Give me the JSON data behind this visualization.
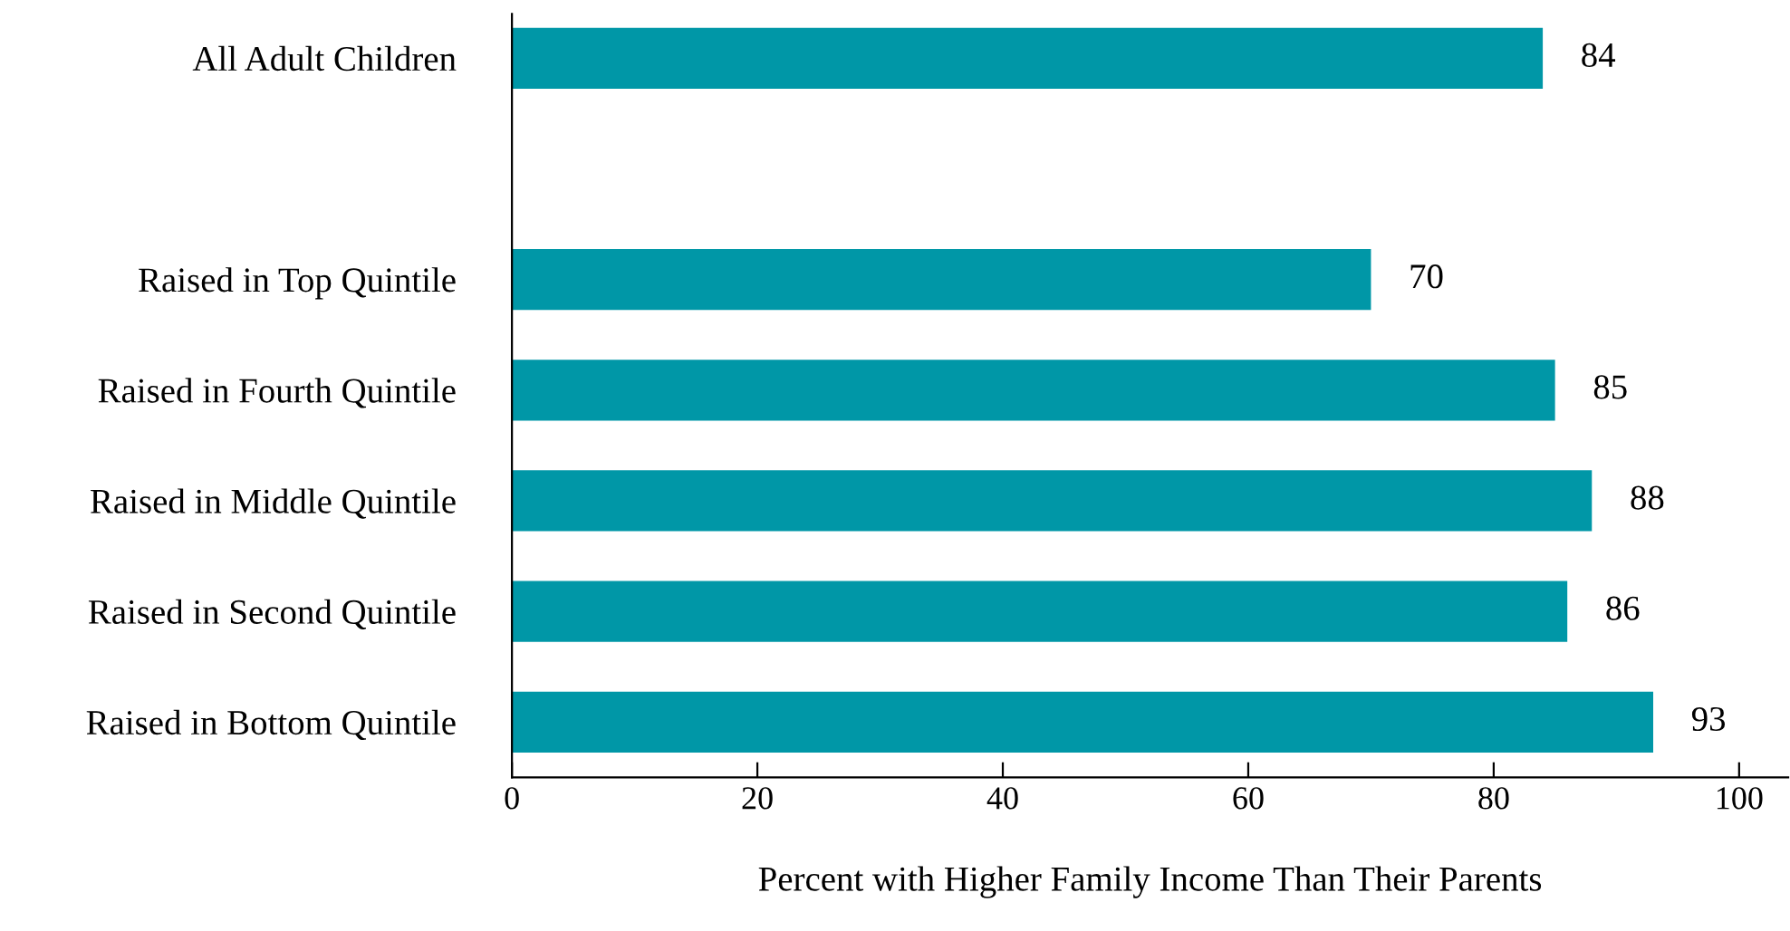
{
  "chart_data": {
    "type": "bar",
    "orientation": "horizontal",
    "categories": [
      "All Adult Children",
      null,
      "Raised in Top Quintile",
      "Raised in Fourth Quintile",
      "Raised in Middle Quintile",
      "Raised in Second Quintile",
      "Raised in Bottom Quintile"
    ],
    "values": [
      84,
      null,
      70,
      85,
      88,
      86,
      93
    ],
    "color": "#0097a7",
    "xlabel": "Percent with Higher Family Income Than Their Parents",
    "xlim": [
      0,
      104
    ],
    "xticks": [
      0,
      20,
      40,
      60,
      80,
      100
    ],
    "data_labels": true,
    "grid": false
  }
}
